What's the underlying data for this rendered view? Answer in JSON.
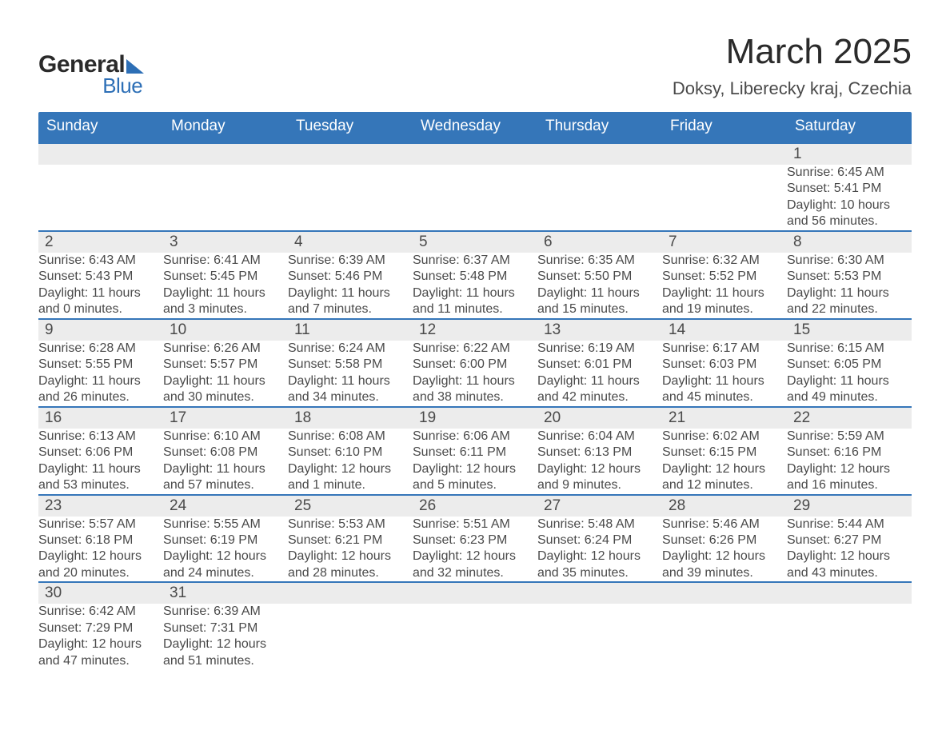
{
  "logo": {
    "text_top": "General",
    "text_bottom": "Blue"
  },
  "title": "March 2025",
  "location": "Doksy, Liberecky kraj, Czechia",
  "columns": [
    "Sunday",
    "Monday",
    "Tuesday",
    "Wednesday",
    "Thursday",
    "Friday",
    "Saturday"
  ],
  "colors": {
    "header_bg": "#3576b9",
    "header_text": "#ffffff",
    "daynum_bg": "#ececec",
    "row_border": "#3576b9",
    "body_text": "#4a4a4a",
    "page_bg": "#ffffff",
    "logo_accent": "#2d6fb6",
    "logo_text": "#2a2a2a"
  },
  "typography": {
    "month_title_size": 44,
    "location_size": 22,
    "weekday_size": 19,
    "daynum_size": 19,
    "detail_size": 16,
    "font_family": "Arial"
  },
  "weeks": [
    [
      null,
      null,
      null,
      null,
      null,
      null,
      {
        "n": "1",
        "sunrise": "6:45 AM",
        "sunset": "5:41 PM",
        "daylight": "10 hours and 56 minutes."
      }
    ],
    [
      {
        "n": "2",
        "sunrise": "6:43 AM",
        "sunset": "5:43 PM",
        "daylight": "11 hours and 0 minutes."
      },
      {
        "n": "3",
        "sunrise": "6:41 AM",
        "sunset": "5:45 PM",
        "daylight": "11 hours and 3 minutes."
      },
      {
        "n": "4",
        "sunrise": "6:39 AM",
        "sunset": "5:46 PM",
        "daylight": "11 hours and 7 minutes."
      },
      {
        "n": "5",
        "sunrise": "6:37 AM",
        "sunset": "5:48 PM",
        "daylight": "11 hours and 11 minutes."
      },
      {
        "n": "6",
        "sunrise": "6:35 AM",
        "sunset": "5:50 PM",
        "daylight": "11 hours and 15 minutes."
      },
      {
        "n": "7",
        "sunrise": "6:32 AM",
        "sunset": "5:52 PM",
        "daylight": "11 hours and 19 minutes."
      },
      {
        "n": "8",
        "sunrise": "6:30 AM",
        "sunset": "5:53 PM",
        "daylight": "11 hours and 22 minutes."
      }
    ],
    [
      {
        "n": "9",
        "sunrise": "6:28 AM",
        "sunset": "5:55 PM",
        "daylight": "11 hours and 26 minutes."
      },
      {
        "n": "10",
        "sunrise": "6:26 AM",
        "sunset": "5:57 PM",
        "daylight": "11 hours and 30 minutes."
      },
      {
        "n": "11",
        "sunrise": "6:24 AM",
        "sunset": "5:58 PM",
        "daylight": "11 hours and 34 minutes."
      },
      {
        "n": "12",
        "sunrise": "6:22 AM",
        "sunset": "6:00 PM",
        "daylight": "11 hours and 38 minutes."
      },
      {
        "n": "13",
        "sunrise": "6:19 AM",
        "sunset": "6:01 PM",
        "daylight": "11 hours and 42 minutes."
      },
      {
        "n": "14",
        "sunrise": "6:17 AM",
        "sunset": "6:03 PM",
        "daylight": "11 hours and 45 minutes."
      },
      {
        "n": "15",
        "sunrise": "6:15 AM",
        "sunset": "6:05 PM",
        "daylight": "11 hours and 49 minutes."
      }
    ],
    [
      {
        "n": "16",
        "sunrise": "6:13 AM",
        "sunset": "6:06 PM",
        "daylight": "11 hours and 53 minutes."
      },
      {
        "n": "17",
        "sunrise": "6:10 AM",
        "sunset": "6:08 PM",
        "daylight": "11 hours and 57 minutes."
      },
      {
        "n": "18",
        "sunrise": "6:08 AM",
        "sunset": "6:10 PM",
        "daylight": "12 hours and 1 minute."
      },
      {
        "n": "19",
        "sunrise": "6:06 AM",
        "sunset": "6:11 PM",
        "daylight": "12 hours and 5 minutes."
      },
      {
        "n": "20",
        "sunrise": "6:04 AM",
        "sunset": "6:13 PM",
        "daylight": "12 hours and 9 minutes."
      },
      {
        "n": "21",
        "sunrise": "6:02 AM",
        "sunset": "6:15 PM",
        "daylight": "12 hours and 12 minutes."
      },
      {
        "n": "22",
        "sunrise": "5:59 AM",
        "sunset": "6:16 PM",
        "daylight": "12 hours and 16 minutes."
      }
    ],
    [
      {
        "n": "23",
        "sunrise": "5:57 AM",
        "sunset": "6:18 PM",
        "daylight": "12 hours and 20 minutes."
      },
      {
        "n": "24",
        "sunrise": "5:55 AM",
        "sunset": "6:19 PM",
        "daylight": "12 hours and 24 minutes."
      },
      {
        "n": "25",
        "sunrise": "5:53 AM",
        "sunset": "6:21 PM",
        "daylight": "12 hours and 28 minutes."
      },
      {
        "n": "26",
        "sunrise": "5:51 AM",
        "sunset": "6:23 PM",
        "daylight": "12 hours and 32 minutes."
      },
      {
        "n": "27",
        "sunrise": "5:48 AM",
        "sunset": "6:24 PM",
        "daylight": "12 hours and 35 minutes."
      },
      {
        "n": "28",
        "sunrise": "5:46 AM",
        "sunset": "6:26 PM",
        "daylight": "12 hours and 39 minutes."
      },
      {
        "n": "29",
        "sunrise": "5:44 AM",
        "sunset": "6:27 PM",
        "daylight": "12 hours and 43 minutes."
      }
    ],
    [
      {
        "n": "30",
        "sunrise": "6:42 AM",
        "sunset": "7:29 PM",
        "daylight": "12 hours and 47 minutes."
      },
      {
        "n": "31",
        "sunrise": "6:39 AM",
        "sunset": "7:31 PM",
        "daylight": "12 hours and 51 minutes."
      },
      null,
      null,
      null,
      null,
      null
    ]
  ],
  "labels": {
    "sunrise": "Sunrise:",
    "sunset": "Sunset:",
    "daylight": "Daylight:"
  }
}
